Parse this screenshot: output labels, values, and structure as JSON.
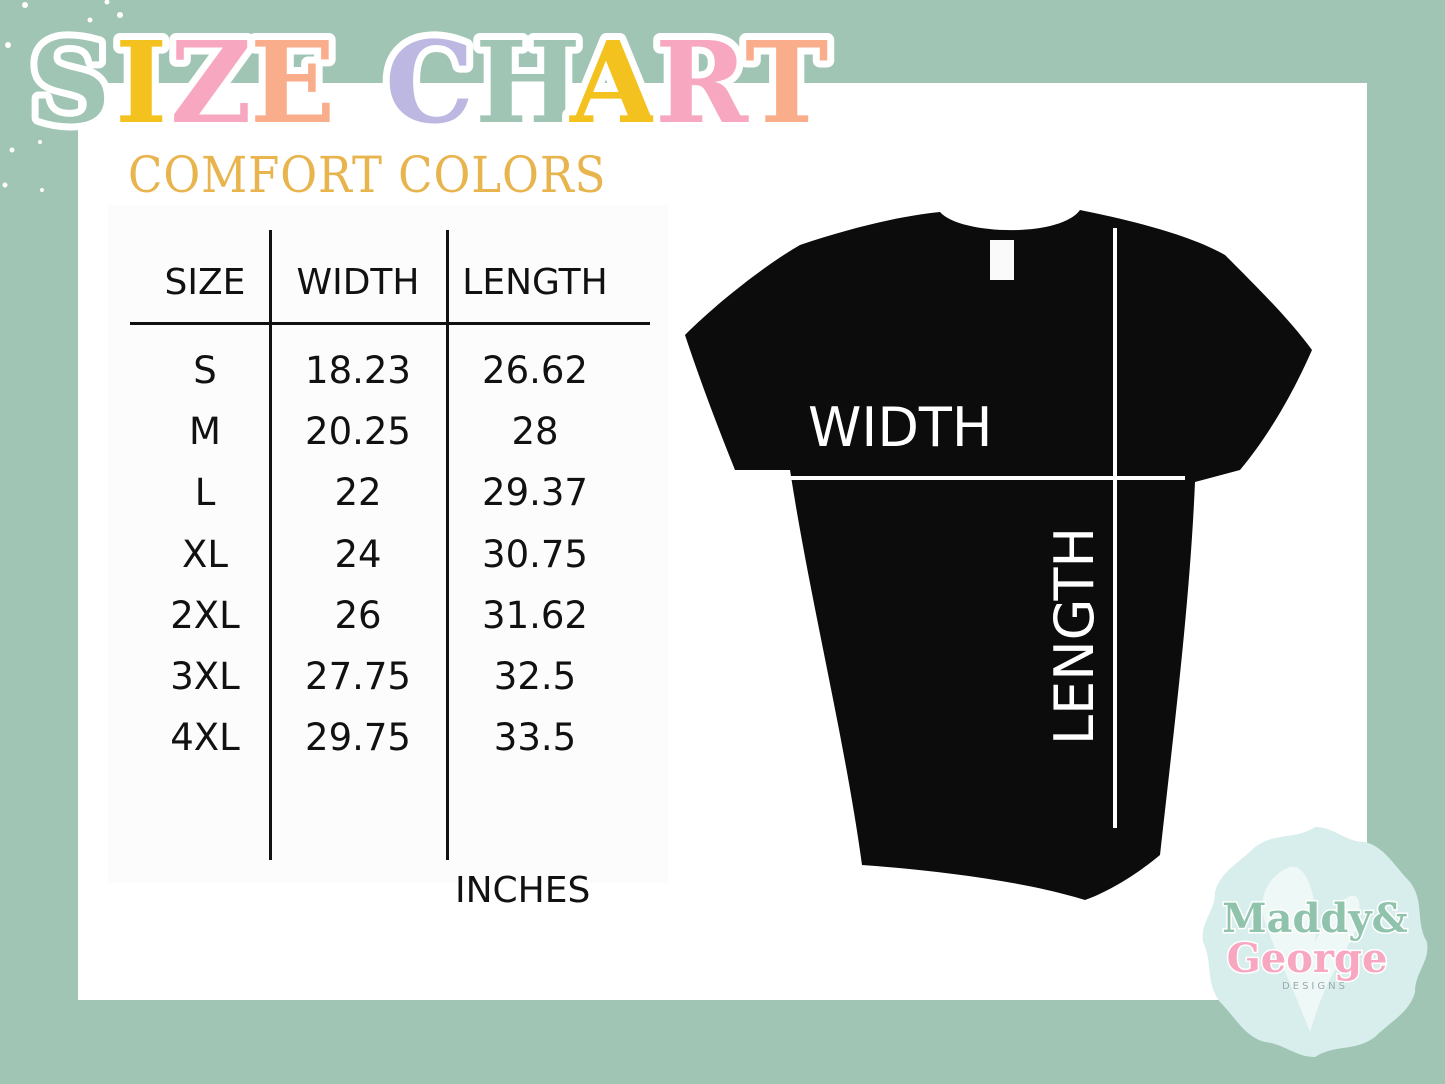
{
  "title": {
    "text": "SIZE CHART",
    "letters": [
      "S",
      "I",
      "Z",
      "E",
      " ",
      "C",
      "H",
      "A",
      "R",
      "T"
    ],
    "letter_colors": [
      "#a0c5b4",
      "#f3c21e",
      "#f7a8c0",
      "#f9ad8a",
      "",
      "#bcb8e2",
      "#a0c5b4",
      "#f3c21e",
      "#f7a8c0",
      "#f9ad8a"
    ]
  },
  "subtitle": "COMFORT COLORS",
  "table": {
    "headers": [
      "SIZE",
      "WIDTH",
      "LENGTH"
    ],
    "rows": [
      [
        "S",
        "18.23",
        "26.62"
      ],
      [
        "M",
        "20.25",
        "28"
      ],
      [
        "L",
        "22",
        "29.37"
      ],
      [
        "XL",
        "24",
        "30.75"
      ],
      [
        "2XL",
        "26",
        "31.62"
      ],
      [
        "3XL",
        "27.75",
        "32.5"
      ],
      [
        "4XL",
        "29.75",
        "33.5"
      ]
    ],
    "unit": "INCHES"
  },
  "shirt": {
    "width_label": "WIDTH",
    "length_label": "LENGTH"
  },
  "logo": {
    "line1": "Maddy&",
    "line2": "George",
    "line3": "DESIGNS"
  },
  "colors": {
    "background": "#a0c5b4",
    "subtitle": "#e8b44e",
    "shirt": "#0c0c0c"
  }
}
